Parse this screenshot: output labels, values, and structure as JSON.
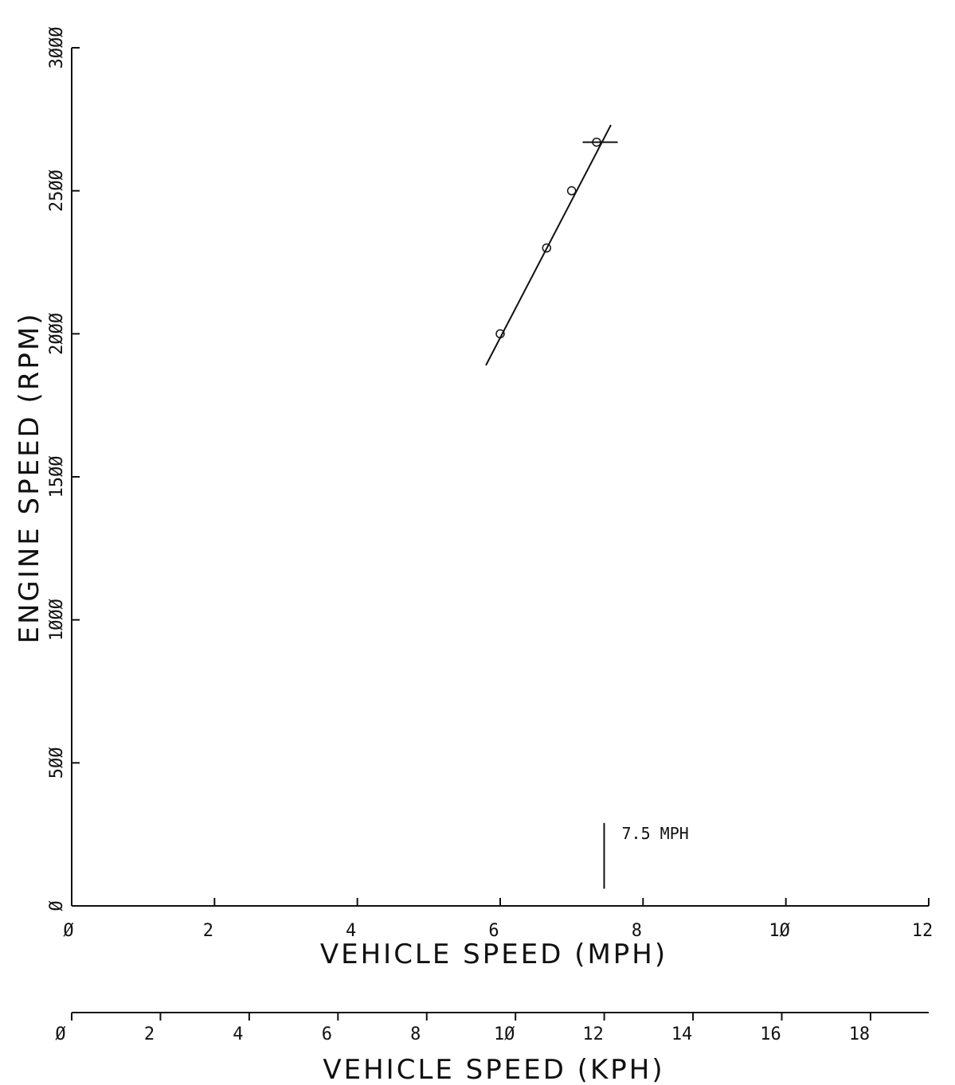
{
  "chart_data": {
    "type": "scatter",
    "title": "",
    "xlabel": "VEHICLE SPEED (MPH)",
    "ylabel": "ENGINE SPEED (RPM)",
    "xlim": [
      0,
      12
    ],
    "ylim": [
      0,
      3000
    ],
    "x_ticks": [
      0,
      2,
      4,
      6,
      8,
      10,
      12
    ],
    "x_tick_labels": [
      "Ø",
      "2",
      "4",
      "6",
      "8",
      "1Ø",
      "12"
    ],
    "y_ticks": [
      0,
      500,
      1000,
      1500,
      2000,
      2500,
      3000
    ],
    "y_tick_labels": [
      "Ø",
      "5ØØ",
      "1ØØØ",
      "15ØØ",
      "2ØØØ",
      "25ØØ",
      "3ØØØ"
    ],
    "secondary_x_axis": {
      "label": "VEHICLE SPEED (KPH)",
      "ticks": [
        0,
        2,
        4,
        6,
        8,
        10,
        12,
        14,
        16,
        18
      ],
      "tick_labels": [
        "Ø",
        "2",
        "4",
        "6",
        "8",
        "1Ø",
        "12",
        "14",
        "16",
        "18"
      ],
      "mph_per_kph": 0.6214
    },
    "series": [
      {
        "marker": "circle",
        "x": [
          6.0,
          6.65,
          7.0,
          7.35
        ],
        "y": [
          2000,
          2300,
          2500,
          2670
        ]
      }
    ],
    "fit_line": {
      "x": [
        5.8,
        7.55
      ],
      "y": [
        1890,
        2730
      ]
    },
    "intercept_mark": {
      "x": 7.4,
      "y": 2670
    },
    "annotation": {
      "x": 7.5,
      "text": "7.5 MPH",
      "y_from": 60,
      "y_to": 290
    },
    "grid": false,
    "legend": "none"
  }
}
